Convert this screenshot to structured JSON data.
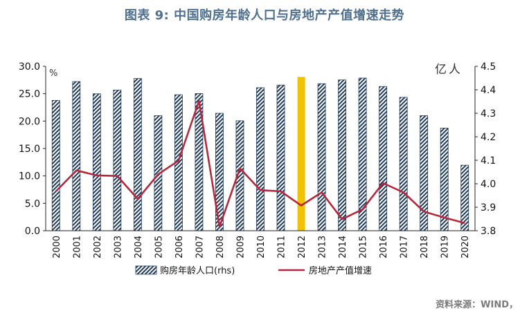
{
  "title": "图表 9:  中国购房年龄人口与房地产产值增速走势",
  "source": "资料来源：WIND，",
  "chart_data": {
    "type": "bar+line",
    "categories": [
      "2000",
      "2001",
      "2002",
      "2003",
      "2004",
      "2005",
      "2006",
      "2007",
      "2008",
      "2009",
      "2010",
      "2011",
      "2012",
      "2013",
      "2014",
      "2015",
      "2016",
      "2017",
      "2018",
      "2019",
      "2020"
    ],
    "left_axis": {
      "unit_label": "%",
      "ticks": [
        "0.0",
        "5.0",
        "10.0",
        "15.0",
        "20.0",
        "25.0",
        "30.0"
      ],
      "ylim": [
        0,
        30
      ]
    },
    "right_axis": {
      "unit_label": "亿人",
      "ticks": [
        "3.8",
        "3.9",
        "4.0",
        "4.1",
        "4.2",
        "4.3",
        "4.4",
        "4.5"
      ],
      "ylim": [
        3.8,
        4.5
      ]
    },
    "series": [
      {
        "name": "购房年龄人口(rhs)",
        "kind": "bar",
        "axis": "right",
        "pattern": "navy diagonal hatch",
        "values": [
          4.355,
          4.435,
          4.383,
          4.399,
          4.448,
          4.29,
          4.379,
          4.384,
          4.3,
          4.268,
          4.409,
          4.42,
          4.455,
          4.426,
          4.442,
          4.45,
          4.414,
          4.368,
          4.29,
          4.237,
          4.079
        ],
        "highlight_index": 12,
        "highlight_color": "#f2c200"
      },
      {
        "name": "房地产产值增速",
        "kind": "line",
        "axis": "left",
        "color": "#b5273a",
        "values": [
          7.2,
          11.0,
          10.1,
          10.0,
          5.8,
          10.3,
          12.8,
          23.7,
          0.7,
          11.4,
          7.4,
          7.2,
          4.6,
          7.0,
          2.1,
          3.9,
          8.7,
          7.0,
          3.5,
          2.4,
          1.4
        ]
      }
    ],
    "legend_placement": "bottom"
  }
}
